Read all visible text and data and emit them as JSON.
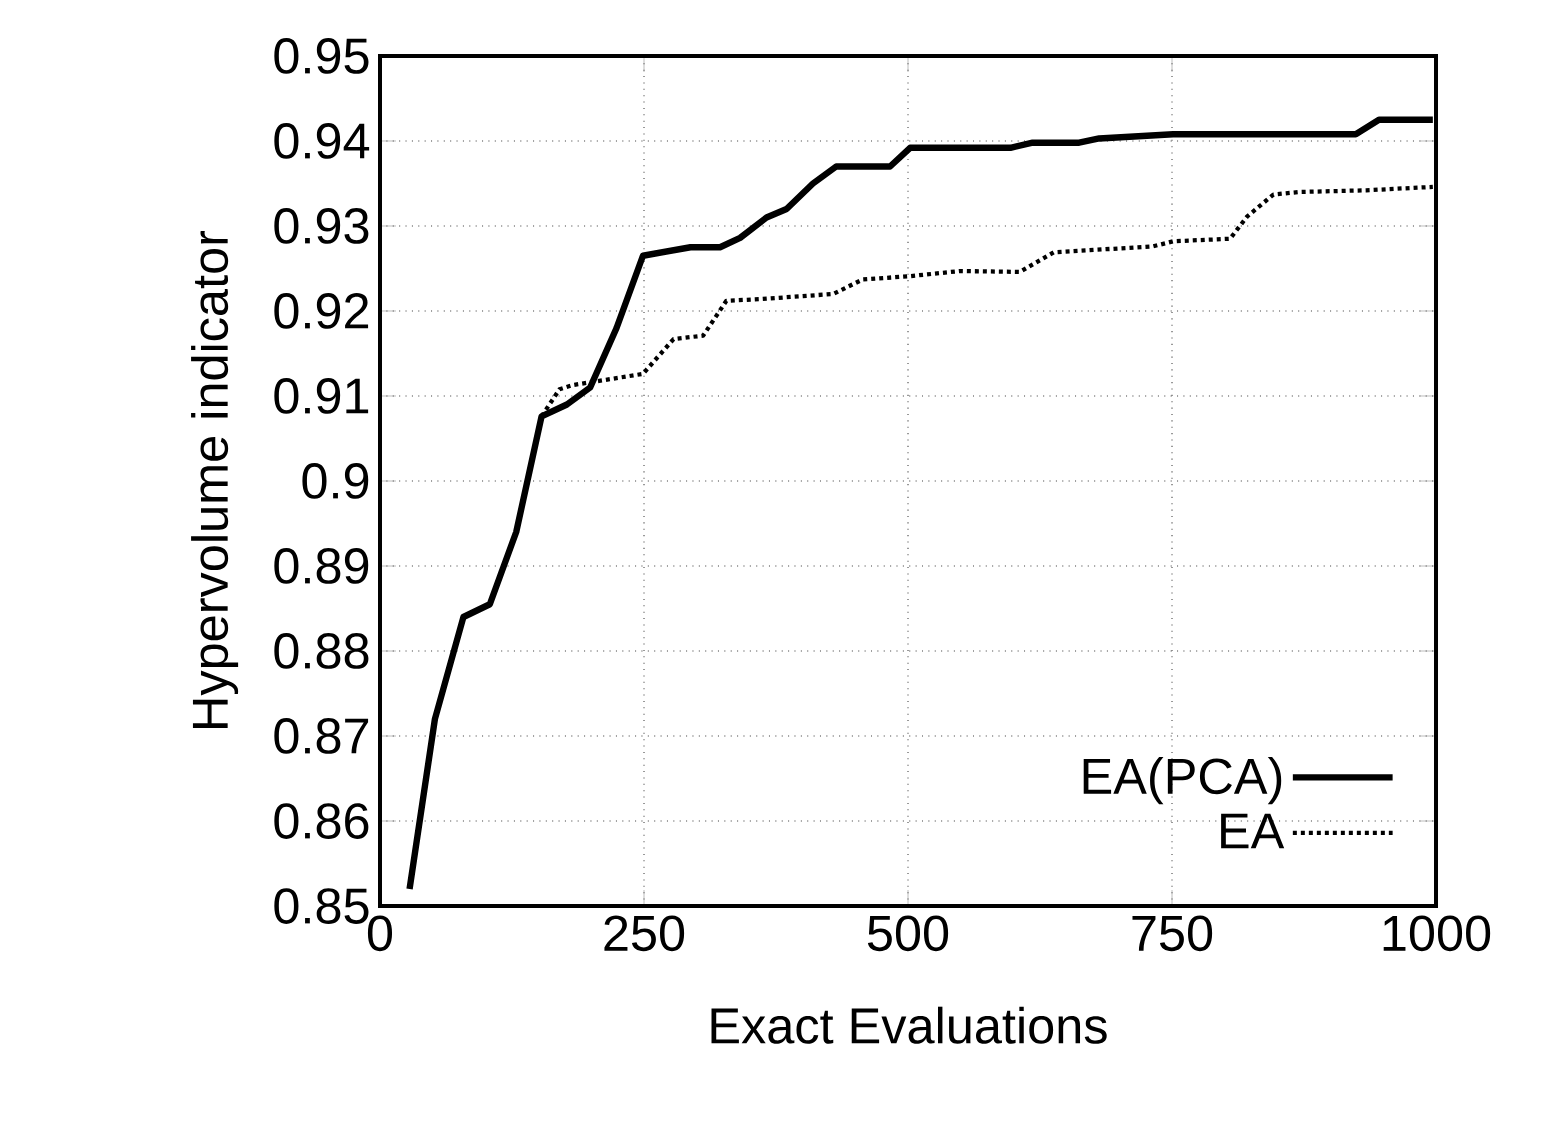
{
  "chart_data": {
    "type": "line",
    "xlabel": "Exact Evaluations",
    "ylabel": "Hypervolume indicator",
    "xlim": [
      0,
      1000
    ],
    "ylim": [
      0.85,
      0.95
    ],
    "xticks": [
      0,
      250,
      500,
      750,
      1000
    ],
    "yticks": [
      0.85,
      0.86,
      0.87,
      0.88,
      0.89,
      "0.9",
      0.91,
      0.92,
      0.93,
      0.94,
      0.95
    ],
    "grid": true,
    "legend": "bottom right",
    "series": [
      {
        "name": "EA(PCA)",
        "color": "#000000",
        "line_style": "solid",
        "x": [
          28,
          52,
          79,
          104,
          129,
          153,
          177,
          199,
          224,
          249,
          294,
          322,
          341,
          366,
          385,
          410,
          432,
          483,
          502,
          549,
          597,
          618,
          662,
          681,
          751,
          924,
          946,
          997
        ],
        "values": [
          0.852,
          0.872,
          0.884,
          0.8855,
          0.894,
          0.9076,
          0.909,
          0.911,
          0.918,
          0.9265,
          0.9275,
          0.9275,
          0.9286,
          0.931,
          0.932,
          0.935,
          0.937,
          0.937,
          0.9392,
          0.9392,
          0.9392,
          0.9398,
          0.9398,
          0.9403,
          0.9408,
          0.9408,
          0.9425,
          0.9425
        ]
      },
      {
        "name": "EA",
        "color": "#000000",
        "line_style": "dotted",
        "x": [
          153,
          170,
          183,
          249,
          278,
          306,
          328,
          360,
          429,
          457,
          502,
          549,
          606,
          638,
          732,
          751,
          805,
          821,
          846,
          871,
          934,
          997
        ],
        "values": [
          0.9076,
          0.9108,
          0.9113,
          0.9126,
          0.9167,
          0.9171,
          0.9212,
          0.9214,
          0.922,
          0.9237,
          0.9241,
          0.9247,
          0.9246,
          0.9269,
          0.9276,
          0.9282,
          0.9285,
          0.9311,
          0.9337,
          0.934,
          0.9342,
          0.9346
        ]
      }
    ]
  }
}
